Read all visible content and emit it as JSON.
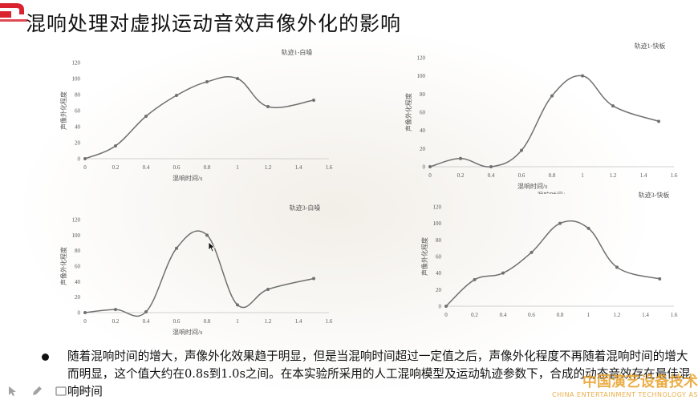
{
  "title": "混响处理对虚拟运动音效声像外化的影响",
  "chart_data": [
    {
      "type": "line",
      "title": "轨迹1-白噪",
      "xlabel": "混响时间/s",
      "ylabel": "声像外化程度",
      "xlim": [
        0,
        1.6
      ],
      "ylim": [
        0,
        120
      ],
      "x_ticks": [
        "0",
        "0.2",
        "0.4",
        "0.6",
        "0.8",
        "1",
        "1.2",
        "1.4",
        "1.6"
      ],
      "y_ticks": [
        "0",
        "20",
        "40",
        "60",
        "80",
        "100",
        "120"
      ],
      "x": [
        0,
        0.2,
        0.4,
        0.6,
        0.8,
        1.0,
        1.2,
        1.5
      ],
      "y": [
        0,
        16,
        53,
        79,
        96,
        100,
        65,
        73
      ]
    },
    {
      "type": "line",
      "title": "轨迹1-快板",
      "xlabel": "混响时间/s",
      "ylabel": "声像外化程度",
      "xlim": [
        0,
        1.6
      ],
      "ylim": [
        0,
        120
      ],
      "x_ticks": [
        "0",
        "0.2",
        "0.4",
        "0.6",
        "0.8",
        "1",
        "1.2",
        "1.4",
        "1.6"
      ],
      "y_ticks": [
        "0",
        "20",
        "40",
        "60",
        "80",
        "100",
        "120"
      ],
      "x": [
        0,
        0.2,
        0.4,
        0.6,
        0.8,
        1.0,
        1.2,
        1.5
      ],
      "y": [
        0,
        9,
        0,
        18,
        78,
        100,
        67,
        50
      ]
    },
    {
      "type": "line",
      "title": "轨迹3-白噪",
      "xlabel": "混响时间/s",
      "ylabel": "声像外化程度",
      "xlim": [
        0,
        1.6
      ],
      "ylim": [
        0,
        120
      ],
      "x_ticks": [
        "0",
        "0.2",
        "0.4",
        "0.6",
        "0.8",
        "1",
        "1.2",
        "1.4",
        "1.6"
      ],
      "y_ticks": [
        "0",
        "20",
        "40",
        "60",
        "80",
        "100",
        "120"
      ],
      "x": [
        0,
        0.2,
        0.4,
        0.6,
        0.8,
        1.0,
        1.2,
        1.5
      ],
      "y": [
        0,
        4,
        1,
        83,
        100,
        10,
        30,
        44
      ]
    },
    {
      "type": "line",
      "title": "轨迹3-快板",
      "xlabel": "",
      "ylabel": "声像外化程度",
      "xlim": [
        0,
        1.6
      ],
      "ylim": [
        0,
        120
      ],
      "x_ticks": [
        "0",
        "0.2",
        "0.4",
        "0.6",
        "0.8",
        "1",
        "1.2",
        "1.4",
        "1.6"
      ],
      "y_ticks": [
        "0",
        "20",
        "40",
        "60",
        "80",
        "100",
        "120"
      ],
      "x": [
        0,
        0.2,
        0.4,
        0.6,
        0.8,
        1.0,
        1.2,
        1.5
      ],
      "y": [
        0,
        32,
        40,
        65,
        100,
        94,
        47,
        33
      ]
    }
  ],
  "partial_label_chart2": "混响时间/s",
  "bullet_text": "随着混响时间的增大，声像外化效果趋于明显，但是当混响时间超过一定值之后，声像外化程度不再随着混响时间的增大而明显，这个值大约在0.8s到1.0s之间。在本实验所采用的人工混响模型及运动轨迹参数下，合成的动态音效存在最佳混响时间",
  "watermark": {
    "cn": "中国演艺设备技术",
    "en": "CHINA ENTERTAINMENT TECHNOLOGY AS"
  },
  "colors": {
    "line": "#707070",
    "marker": "#707070",
    "title_text": "#111111",
    "watermark": "#e8a12a",
    "corner_mark": "#d9232e"
  },
  "icons": [
    "pointer-icon",
    "pen-icon",
    "highlighter-icon",
    "more-options-icon"
  ]
}
